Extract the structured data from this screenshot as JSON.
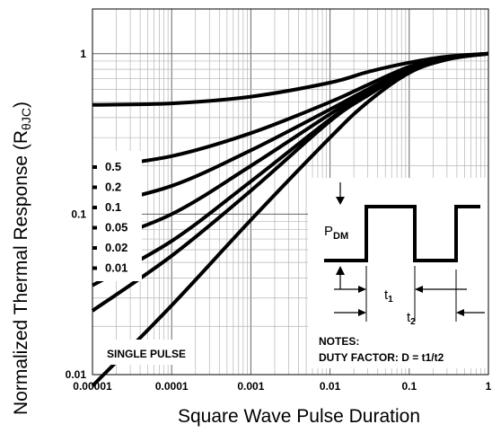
{
  "chart_data": {
    "type": "line",
    "title": "",
    "xlabel": "Square Wave Pulse Duration",
    "ylabel": "Normalized Thermal Response (R",
    "ylabel_sub": "θJC",
    "ylabel_close": ")",
    "x_scale": "log",
    "y_scale": "log",
    "xlim": [
      1e-05,
      1
    ],
    "ylim": [
      0.01,
      1.9
    ],
    "x_ticks": [
      1e-05,
      0.0001,
      0.001,
      0.01,
      0.1,
      1
    ],
    "x_tick_labels": [
      "0.00001",
      "0.0001",
      "0.001",
      "0.01",
      "0.1",
      "1"
    ],
    "y_ticks": [
      0.01,
      0.1,
      1
    ],
    "y_tick_labels": [
      "0.01",
      "0.1",
      "1"
    ],
    "grid": true,
    "series": [
      {
        "name": "0.5",
        "x": [
          1e-05,
          0.0001,
          0.001,
          0.01,
          0.03,
          0.1,
          0.3,
          1
        ],
        "y": [
          0.48,
          0.49,
          0.54,
          0.66,
          0.77,
          0.88,
          0.96,
          1.0
        ]
      },
      {
        "name": "0.2",
        "x": [
          1e-05,
          0.0001,
          0.001,
          0.01,
          0.03,
          0.1,
          0.3,
          1
        ],
        "y": [
          0.195,
          0.23,
          0.32,
          0.5,
          0.64,
          0.83,
          0.95,
          1.0
        ]
      },
      {
        "name": "0.1",
        "x": [
          1e-05,
          0.0001,
          0.001,
          0.01,
          0.03,
          0.1,
          0.3,
          1
        ],
        "y": [
          0.112,
          0.15,
          0.25,
          0.45,
          0.6,
          0.8,
          0.94,
          1.0
        ]
      },
      {
        "name": "0.05",
        "x": [
          1e-05,
          0.0001,
          0.001,
          0.01,
          0.03,
          0.1,
          0.3,
          1
        ],
        "y": [
          0.065,
          0.1,
          0.2,
          0.42,
          0.58,
          0.79,
          0.93,
          1.0
        ]
      },
      {
        "name": "0.02",
        "x": [
          1e-05,
          0.0001,
          0.001,
          0.01,
          0.03,
          0.1,
          0.3,
          1
        ],
        "y": [
          0.036,
          0.068,
          0.16,
          0.39,
          0.56,
          0.78,
          0.93,
          1.0
        ]
      },
      {
        "name": "0.01",
        "x": [
          1e-05,
          0.0001,
          0.001,
          0.01,
          0.03,
          0.1,
          0.3,
          1
        ],
        "y": [
          0.025,
          0.055,
          0.14,
          0.38,
          0.55,
          0.78,
          0.93,
          1.0
        ]
      },
      {
        "name": "SINGLE PULSE",
        "x": [
          1e-05,
          0.0001,
          0.001,
          0.01,
          0.03,
          0.1,
          0.3,
          1
        ],
        "y": [
          0.0085,
          0.027,
          0.092,
          0.3,
          0.5,
          0.76,
          0.92,
          1.0
        ]
      }
    ],
    "duty_labels": [
      "0.5",
      "0.2",
      "0.1",
      "0.05",
      "0.02",
      "0.01"
    ],
    "single_pulse_label": "SINGLE PULSE",
    "inset": {
      "pdm_label": "P",
      "pdm_sub": "DM",
      "t1_label": "t",
      "t1_sub": "1",
      "t2_label": "t",
      "t2_sub": "2",
      "notes_title": "NOTES:",
      "notes_text": "DUTY FACTOR: D = t1/t2"
    }
  }
}
